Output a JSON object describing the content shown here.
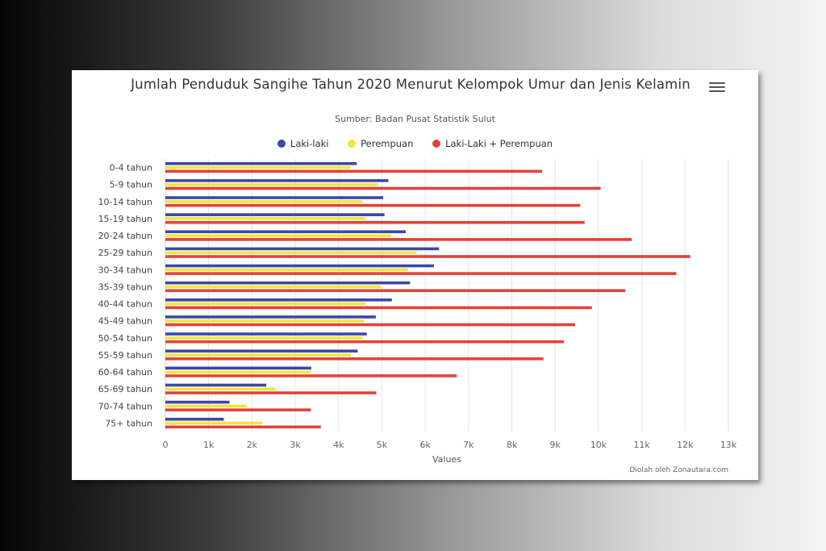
{
  "chart": {
    "title": "Jumlah Penduduk Sangihe Tahun 2020 Menurut Kelompok Umur dan Jenis Kelamin",
    "subtitle": "Sumber: Badan Pusat Statistik Sulut",
    "credit": "Diolah oleh Zonautara.com",
    "menu_icon": "hamburger-menu-icon"
  },
  "colors": {
    "laki": "#3b47a8",
    "perempuan": "#f5e53b",
    "total": "#e2433a",
    "grid": "#e6e6e6",
    "axis": "#ccd6eb"
  },
  "chart_data": {
    "type": "bar",
    "orientation": "horizontal",
    "categories": [
      "0-4 tahun",
      "5-9 tahun",
      "10-14 tahun",
      "15-19 tahun",
      "20-24 tahun",
      "25-29 tahun",
      "30-34 tahun",
      "35-39 tahun",
      "40-44 tahun",
      "45-49 tahun",
      "50-54 tahun",
      "55-59 tahun",
      "60-64 tahun",
      "65-69 tahun",
      "70-74 tahun",
      "75+ tahun"
    ],
    "series": [
      {
        "name": "Laki-laki",
        "values": [
          4420,
          5150,
          5030,
          5060,
          5550,
          6320,
          6200,
          5650,
          5230,
          4860,
          4650,
          4440,
          3370,
          2330,
          1480,
          1350
        ]
      },
      {
        "name": "Perempuan",
        "values": [
          4280,
          4900,
          4550,
          4620,
          5220,
          5800,
          5600,
          4970,
          4620,
          4600,
          4550,
          4290,
          3360,
          2540,
          1880,
          2240
        ]
      },
      {
        "name": "Laki-Laki + Perempuan",
        "values": [
          8700,
          10050,
          9580,
          9680,
          10770,
          12120,
          11800,
          10620,
          9850,
          9460,
          9200,
          8730,
          6730,
          4870,
          3360,
          3590
        ]
      }
    ],
    "xlabel": "Values",
    "xlim": [
      0,
      13000
    ],
    "xticks": [
      0,
      1000,
      2000,
      3000,
      4000,
      5000,
      6000,
      7000,
      8000,
      9000,
      10000,
      11000,
      12000,
      13000
    ],
    "xtick_labels": [
      "0",
      "1k",
      "2k",
      "3k",
      "4k",
      "5k",
      "6k",
      "7k",
      "8k",
      "9k",
      "10k",
      "11k",
      "12k",
      "13k"
    ],
    "legend_position": "top-center",
    "grid": true
  }
}
